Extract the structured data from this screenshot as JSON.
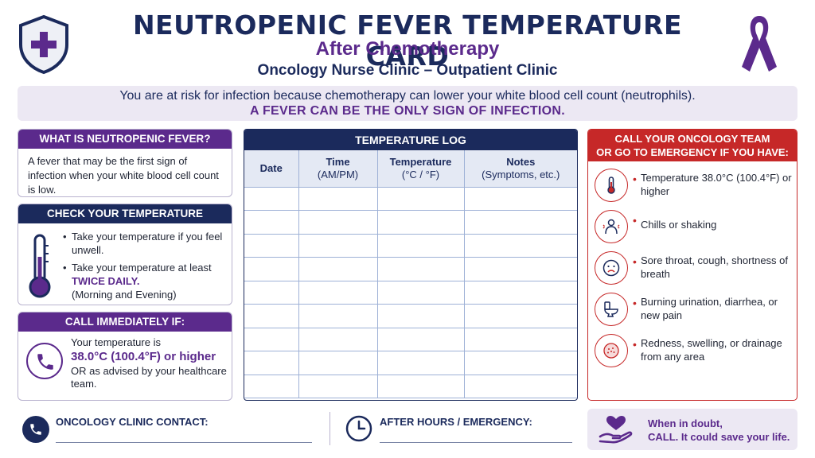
{
  "header": {
    "title": "NEUTROPENIC FEVER TEMPERATURE CARD",
    "subtitle": "After Chemotherapy",
    "clinic": "Oncology Nurse Clinic – Outpatient Clinic",
    "shield_icon": "shield-cross-icon",
    "ribbon_icon": "awareness-ribbon-icon"
  },
  "banner": {
    "line1": "You are at risk for infection because chemotherapy can lower your white blood cell count (neutrophils).",
    "line2": "A FEVER CAN BE THE ONLY SIGN OF INFECTION."
  },
  "what_is": {
    "heading": "WHAT IS NEUTROPENIC FEVER?",
    "text": "A fever that may be the first sign of infection when your white blood cell count is low."
  },
  "check": {
    "heading": "CHECK YOUR TEMPERATURE",
    "bullet1": "Take your temperature if you feel unwell.",
    "bullet2_pre": "Take your temperature at least ",
    "bullet2_emph": "TWICE DAILY.",
    "bullet2_post": "(Morning and Evening)"
  },
  "call_immediately": {
    "heading": "CALL IMMEDIATELY IF:",
    "line1": "Your temperature is",
    "threshold": "38.0°C (100.4°F) or higher",
    "line3": "OR as advised by your healthcare team."
  },
  "log": {
    "heading": "TEMPERATURE LOG",
    "columns": [
      {
        "title": "Date",
        "sub": ""
      },
      {
        "title": "Time",
        "sub": "(AM/PM)"
      },
      {
        "title": "Temperature",
        "sub": "(°C / °F)"
      },
      {
        "title": "Notes",
        "sub": "(Symptoms, etc.)"
      }
    ],
    "rows": 9
  },
  "call_team": {
    "heading_line1": "CALL YOUR ONCOLOGY TEAM",
    "heading_line2": "OR GO TO EMERGENCY IF YOU HAVE:",
    "symptoms": [
      {
        "icon": "thermometer-icon",
        "text": "Temperature 38.0°C (100.4°F) or higher"
      },
      {
        "icon": "shivering-person-icon",
        "text": "Chills or shaking"
      },
      {
        "icon": "sad-face-icon",
        "text": "Sore throat, cough, shortness of breath"
      },
      {
        "icon": "toilet-icon",
        "text": "Burning urination, diarrhea, or new pain"
      },
      {
        "icon": "skin-redness-icon",
        "text": "Redness, swelling, or drainage from any area"
      }
    ]
  },
  "footer": {
    "contact_label": "ONCOLOGY CLINIC CONTACT:",
    "after_hours_label": "AFTER HOURS / EMERGENCY:",
    "doubt_line1": "When in doubt,",
    "doubt_line2": "CALL. It could save your life."
  },
  "colors": {
    "navy": "#1b2a5c",
    "purple": "#5b2a8c",
    "red": "#c62828",
    "lavender": "#ece8f3"
  }
}
